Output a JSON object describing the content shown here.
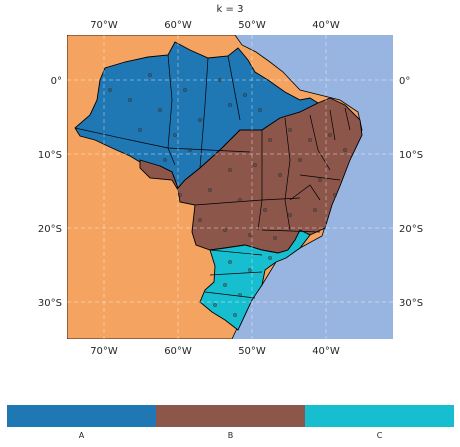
{
  "title": "k = 3",
  "axes": {
    "x_ticks": [
      "70°W",
      "60°W",
      "50°W",
      "40°W"
    ],
    "y_ticks": [
      "0°",
      "10°S",
      "20°S",
      "30°S"
    ]
  },
  "colors": {
    "ocean": "#98b4e1",
    "land_other": "#f4a460",
    "boundary": "#000000",
    "point": "#404040"
  },
  "legend": [
    {
      "label": "A",
      "color": "#1f77b4"
    },
    {
      "label": "B",
      "color": "#8c564b"
    },
    {
      "label": "C",
      "color": "#17becf"
    }
  ]
}
